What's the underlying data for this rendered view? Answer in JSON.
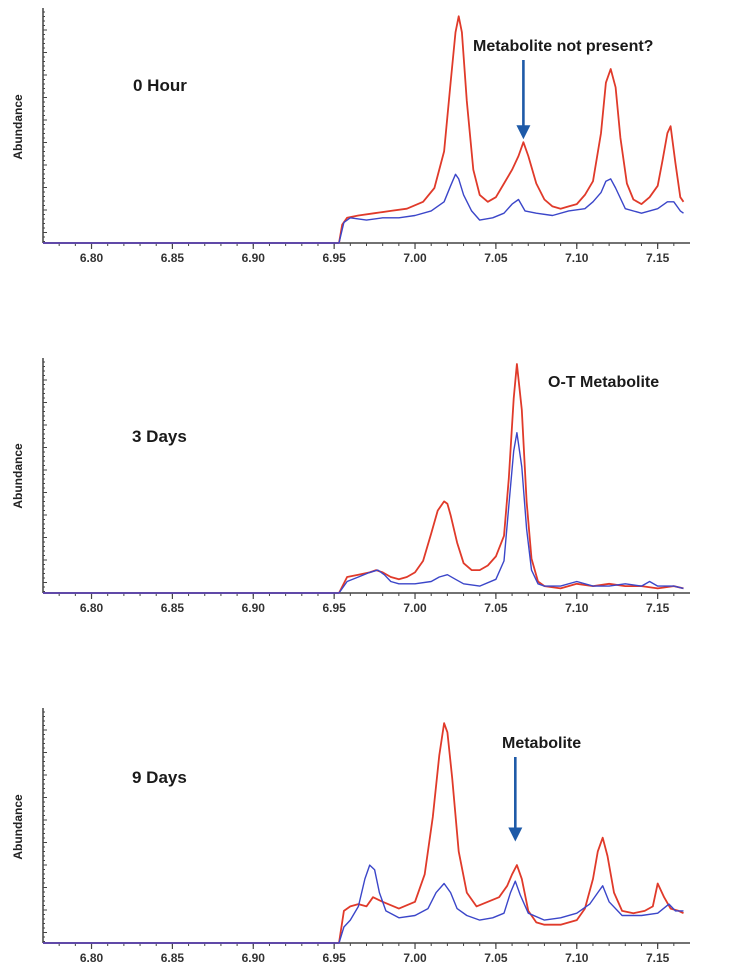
{
  "colors": {
    "red": "#e03a2a",
    "blue": "#3b46c9",
    "arrow": "#1e5aa8",
    "axis": "#444444"
  },
  "chart_data": [
    {
      "type": "line",
      "panel_label": "0 Hour",
      "ylabel": "Abundance",
      "xlim": [
        6.77,
        7.17
      ],
      "ylim": [
        0,
        100
      ],
      "xticks": [
        6.8,
        6.85,
        6.9,
        6.95,
        7.0,
        7.05,
        7.1,
        7.15
      ],
      "tick_labels": [
        "6.80",
        "6.85",
        "6.90",
        "6.95",
        "7.00",
        "7.05",
        "7.10",
        "7.15"
      ],
      "annotation": {
        "text": "Metabolite not present?",
        "arrow_x": 7.067,
        "arrow_y": 44
      },
      "series": [
        {
          "color_key": "red",
          "x": [
            6.953,
            6.955,
            6.958,
            6.965,
            6.975,
            6.985,
            6.995,
            7.005,
            7.012,
            7.018,
            7.022,
            7.025,
            7.027,
            7.029,
            7.032,
            7.036,
            7.04,
            7.045,
            7.05,
            7.055,
            7.06,
            7.064,
            7.067,
            7.07,
            7.075,
            7.08,
            7.085,
            7.09,
            7.095,
            7.1,
            7.105,
            7.11,
            7.115,
            7.118,
            7.121,
            7.124,
            7.127,
            7.131,
            7.135,
            7.14,
            7.145,
            7.15,
            7.153,
            7.156,
            7.158,
            7.161,
            7.164,
            7.166
          ],
          "y": [
            0,
            8,
            11,
            12,
            13,
            14,
            15,
            18,
            24,
            40,
            70,
            92,
            99,
            92,
            62,
            32,
            21,
            18,
            20,
            26,
            32,
            38,
            44,
            38,
            26,
            19,
            16,
            15,
            16,
            17,
            21,
            27,
            48,
            70,
            76,
            68,
            46,
            26,
            19,
            17,
            20,
            25,
            36,
            48,
            51,
            35,
            20,
            18
          ]
        },
        {
          "color_key": "blue",
          "x": [
            6.953,
            6.956,
            6.96,
            6.97,
            6.98,
            6.99,
            7.0,
            7.01,
            7.018,
            7.022,
            7.025,
            7.027,
            7.03,
            7.035,
            7.04,
            7.048,
            7.055,
            7.06,
            7.064,
            7.068,
            7.075,
            7.085,
            7.095,
            7.105,
            7.11,
            7.115,
            7.118,
            7.121,
            7.124,
            7.13,
            7.14,
            7.15,
            7.156,
            7.16,
            7.164,
            7.166
          ],
          "y": [
            0,
            9,
            11,
            10,
            11,
            11,
            12,
            14,
            18,
            25,
            30,
            28,
            21,
            14,
            10,
            11,
            13,
            17,
            19,
            14,
            13,
            12,
            14,
            15,
            18,
            22,
            27,
            28,
            24,
            15,
            13,
            15,
            18,
            18,
            14,
            13
          ]
        }
      ]
    },
    {
      "type": "line",
      "panel_label": "3 Days",
      "ylabel": "Abundance",
      "xlim": [
        6.77,
        7.17
      ],
      "ylim": [
        0,
        100
      ],
      "xticks": [
        6.8,
        6.85,
        6.9,
        6.95,
        7.0,
        7.05,
        7.1,
        7.15
      ],
      "tick_labels": [
        "6.80",
        "6.85",
        "6.90",
        "6.95",
        "7.00",
        "7.05",
        "7.10",
        "7.15"
      ],
      "annotation": {
        "text": "O-T Metabolite"
      },
      "series": [
        {
          "color_key": "red",
          "x": [
            6.953,
            6.958,
            6.965,
            6.972,
            6.976,
            6.98,
            6.985,
            6.99,
            6.995,
            7.0,
            7.005,
            7.01,
            7.014,
            7.018,
            7.02,
            7.022,
            7.026,
            7.03,
            7.035,
            7.04,
            7.045,
            7.05,
            7.055,
            7.058,
            7.061,
            7.063,
            7.066,
            7.069,
            7.072,
            7.076,
            7.08,
            7.09,
            7.1,
            7.11,
            7.12,
            7.13,
            7.14,
            7.15,
            7.16,
            7.166
          ],
          "y": [
            0,
            7,
            8,
            9,
            10,
            9,
            7,
            6,
            7,
            9,
            14,
            26,
            36,
            40,
            39,
            34,
            22,
            13,
            10,
            10,
            12,
            16,
            25,
            50,
            85,
            100,
            80,
            40,
            15,
            5,
            3,
            2,
            4,
            3,
            4,
            3,
            3,
            2,
            3,
            2
          ]
        },
        {
          "color_key": "blue",
          "x": [
            6.953,
            6.958,
            6.965,
            6.972,
            6.977,
            6.981,
            6.985,
            6.99,
            7.0,
            7.01,
            7.015,
            7.02,
            7.025,
            7.03,
            7.04,
            7.05,
            7.055,
            7.058,
            7.061,
            7.063,
            7.066,
            7.069,
            7.072,
            7.076,
            7.08,
            7.09,
            7.1,
            7.11,
            7.12,
            7.13,
            7.14,
            7.145,
            7.15,
            7.16,
            7.166
          ],
          "y": [
            0,
            5,
            7,
            9,
            10,
            8,
            5,
            4,
            4,
            5,
            7,
            8,
            6,
            4,
            3,
            6,
            14,
            38,
            62,
            70,
            55,
            28,
            10,
            4,
            3,
            3,
            5,
            3,
            3,
            4,
            3,
            5,
            3,
            3,
            2
          ]
        }
      ]
    },
    {
      "type": "line",
      "panel_label": "9 Days",
      "ylabel": "Abundance",
      "xlim": [
        6.77,
        7.17
      ],
      "ylim": [
        0,
        100
      ],
      "xticks": [
        6.8,
        6.85,
        6.9,
        6.95,
        7.0,
        7.05,
        7.1,
        7.15
      ],
      "tick_labels": [
        "6.80",
        "6.85",
        "6.90",
        "6.95",
        "7.00",
        "7.05",
        "7.10",
        "7.15"
      ],
      "annotation": {
        "text": "Metabolite",
        "arrow_x": 7.062,
        "arrow_y": 43
      },
      "series": [
        {
          "color_key": "red",
          "x": [
            6.953,
            6.956,
            6.96,
            6.965,
            6.97,
            6.974,
            6.98,
            6.99,
            7.0,
            7.006,
            7.011,
            7.015,
            7.018,
            7.02,
            7.023,
            7.027,
            7.032,
            7.038,
            7.045,
            7.052,
            7.057,
            7.06,
            7.063,
            7.066,
            7.07,
            7.075,
            7.08,
            7.09,
            7.1,
            7.105,
            7.11,
            7.113,
            7.116,
            7.119,
            7.123,
            7.128,
            7.135,
            7.142,
            7.147,
            7.15,
            7.154,
            7.158,
            7.163,
            7.166
          ],
          "y": [
            0,
            14,
            16,
            17,
            16,
            20,
            18,
            15,
            18,
            30,
            55,
            82,
            96,
            92,
            72,
            40,
            22,
            16,
            18,
            20,
            25,
            30,
            34,
            28,
            14,
            9,
            8,
            8,
            10,
            15,
            28,
            40,
            46,
            38,
            22,
            14,
            13,
            14,
            16,
            26,
            20,
            15,
            14,
            13
          ]
        },
        {
          "color_key": "blue",
          "x": [
            6.953,
            6.956,
            6.96,
            6.965,
            6.969,
            6.972,
            6.975,
            6.978,
            6.982,
            6.99,
            7.0,
            7.008,
            7.013,
            7.018,
            7.022,
            7.026,
            7.032,
            7.04,
            7.048,
            7.055,
            7.059,
            7.062,
            7.065,
            7.07,
            7.08,
            7.09,
            7.1,
            7.108,
            7.113,
            7.116,
            7.12,
            7.128,
            7.14,
            7.15,
            7.157,
            7.161,
            7.166
          ],
          "y": [
            0,
            7,
            10,
            16,
            28,
            34,
            32,
            22,
            14,
            11,
            12,
            15,
            22,
            26,
            22,
            15,
            12,
            10,
            11,
            13,
            22,
            27,
            21,
            13,
            10,
            11,
            13,
            17,
            22,
            25,
            18,
            12,
            12,
            13,
            17,
            14,
            14
          ]
        }
      ]
    }
  ]
}
